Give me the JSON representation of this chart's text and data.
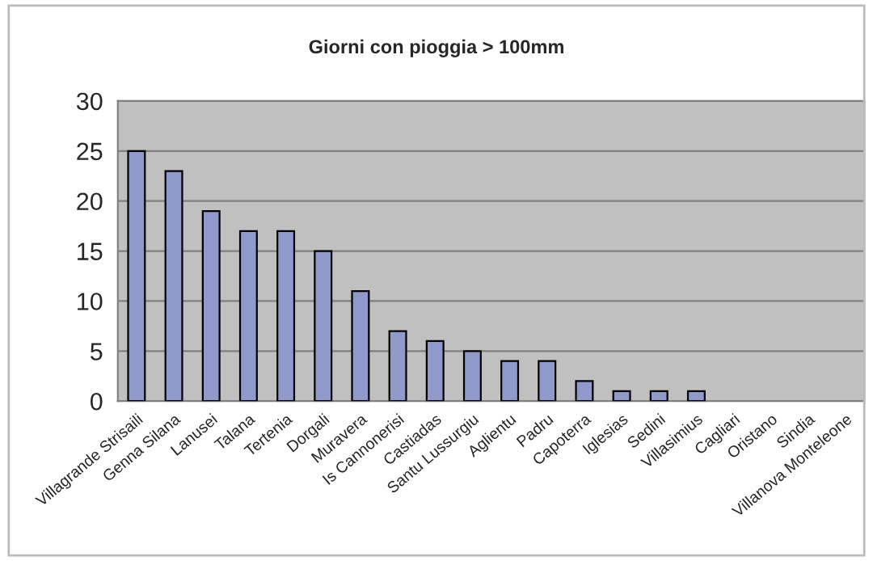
{
  "chart_data": {
    "type": "bar",
    "title": "Giorni con pioggia > 100mm",
    "categories": [
      "Villagrande Strisaili",
      "Genna Silana",
      "Lanusei",
      "Talana",
      "Tertenia",
      "Dorgali",
      "Muravera",
      "Is Cannonerisi",
      "Castiadas",
      "Santu Lussurgiu",
      "Aglientu",
      "Padru",
      "Capoterra",
      "Iglesias",
      "Sedini",
      "Villasimius",
      "Cagliari",
      "Oristano",
      "Sindia",
      "Villanova Monteleone"
    ],
    "values": [
      25,
      23,
      19,
      17,
      17,
      15,
      11,
      7,
      6,
      5,
      4,
      4,
      2,
      1,
      1,
      1,
      0,
      0,
      0,
      0
    ],
    "color": "#8f9acb",
    "ylim": [
      0,
      30
    ],
    "yticks": [
      0,
      5,
      10,
      15,
      20,
      25,
      30
    ],
    "grid": "y",
    "legend": false
  }
}
